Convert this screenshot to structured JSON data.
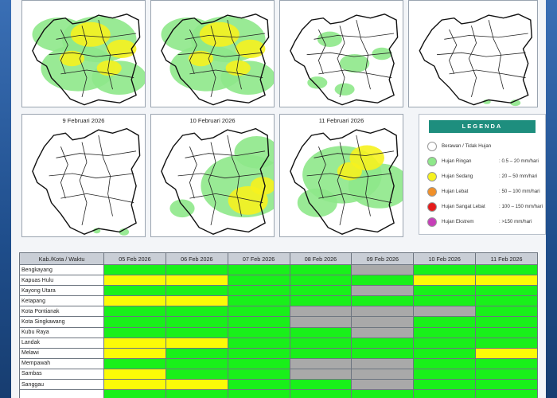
{
  "maps": [
    {
      "date": "",
      "rain": "heavy"
    },
    {
      "date": "",
      "rain": "heavy"
    },
    {
      "date": "",
      "rain": "light"
    },
    {
      "date": "",
      "rain": "none"
    },
    {
      "date": "9 Februari 2026",
      "rain": "none"
    },
    {
      "date": "10 Februari 2026",
      "rain": "southeast"
    },
    {
      "date": "11 Februari 2026",
      "rain": "east"
    }
  ],
  "legend": {
    "title": "LEGENDA",
    "items": [
      {
        "label": "Berawan / Tidak Hujan",
        "range": "",
        "color": "#ffffff"
      },
      {
        "label": "Hujan Ringan",
        "range": ": 0.5 – 20 mm/hari",
        "color": "#8ee88a"
      },
      {
        "label": "Hujan Sedang",
        "range": ": 20 – 50 mm/hari",
        "color": "#f6f21e"
      },
      {
        "label": "Hujan Lebat",
        "range": ": 50 – 100 mm/hari",
        "color": "#f0902a"
      },
      {
        "label": "Hujan Sangat Lebat",
        "range": ": 100 – 150 mm/hari",
        "color": "#e51b1b"
      },
      {
        "label": "Hujan Ekstrem",
        "range": ": >150 mm/hari",
        "color": "#c63fb8"
      }
    ]
  },
  "table": {
    "corner": "Kab./Kota / Waktu",
    "dates": [
      "05 Feb 2026",
      "06 Feb 2026",
      "07 Feb 2026",
      "08 Feb 2026",
      "09 Feb 2026",
      "10 Feb 2026",
      "11 Feb 2026"
    ],
    "rows": [
      {
        "name": "Bengkayang",
        "levels": [
          "G",
          "G",
          "G",
          "G",
          "A",
          "G",
          "G"
        ]
      },
      {
        "name": "Kapuas Hulu",
        "levels": [
          "Y",
          "Y",
          "G",
          "G",
          "G",
          "Y",
          "Y"
        ]
      },
      {
        "name": "Kayong Utara",
        "levels": [
          "G",
          "G",
          "G",
          "G",
          "A",
          "G",
          "G"
        ]
      },
      {
        "name": "Ketapang",
        "levels": [
          "Y",
          "Y",
          "G",
          "G",
          "G",
          "G",
          "G"
        ]
      },
      {
        "name": "Kota Pontianak",
        "levels": [
          "G",
          "G",
          "G",
          "A",
          "A",
          "A",
          "G"
        ]
      },
      {
        "name": "Kota Singkawang",
        "levels": [
          "G",
          "G",
          "G",
          "A",
          "A",
          "G",
          "G"
        ]
      },
      {
        "name": "Kubu Raya",
        "levels": [
          "G",
          "G",
          "G",
          "G",
          "A",
          "G",
          "G"
        ]
      },
      {
        "name": "Landak",
        "levels": [
          "Y",
          "Y",
          "G",
          "G",
          "G",
          "G",
          "G"
        ]
      },
      {
        "name": "Melawi",
        "levels": [
          "Y",
          "G",
          "G",
          "G",
          "G",
          "G",
          "Y"
        ]
      },
      {
        "name": "Mempawah",
        "levels": [
          "G",
          "G",
          "G",
          "A",
          "A",
          "G",
          "G"
        ]
      },
      {
        "name": "Sambas",
        "levels": [
          "Y",
          "G",
          "G",
          "A",
          "A",
          "G",
          "G"
        ]
      },
      {
        "name": "Sanggau",
        "levels": [
          "Y",
          "Y",
          "G",
          "G",
          "A",
          "G",
          "G"
        ]
      },
      {
        "name": "",
        "levels": [
          "G",
          "G",
          "G",
          "G",
          "G",
          "G",
          "G"
        ]
      }
    ]
  },
  "colors": {
    "green": "#19f01a",
    "yellow": "#fbfb07",
    "gray": "#a9a9a9",
    "header": "#c9ced6",
    "legend_title": "#1e8e7e",
    "frame": "#1f4e8c"
  }
}
